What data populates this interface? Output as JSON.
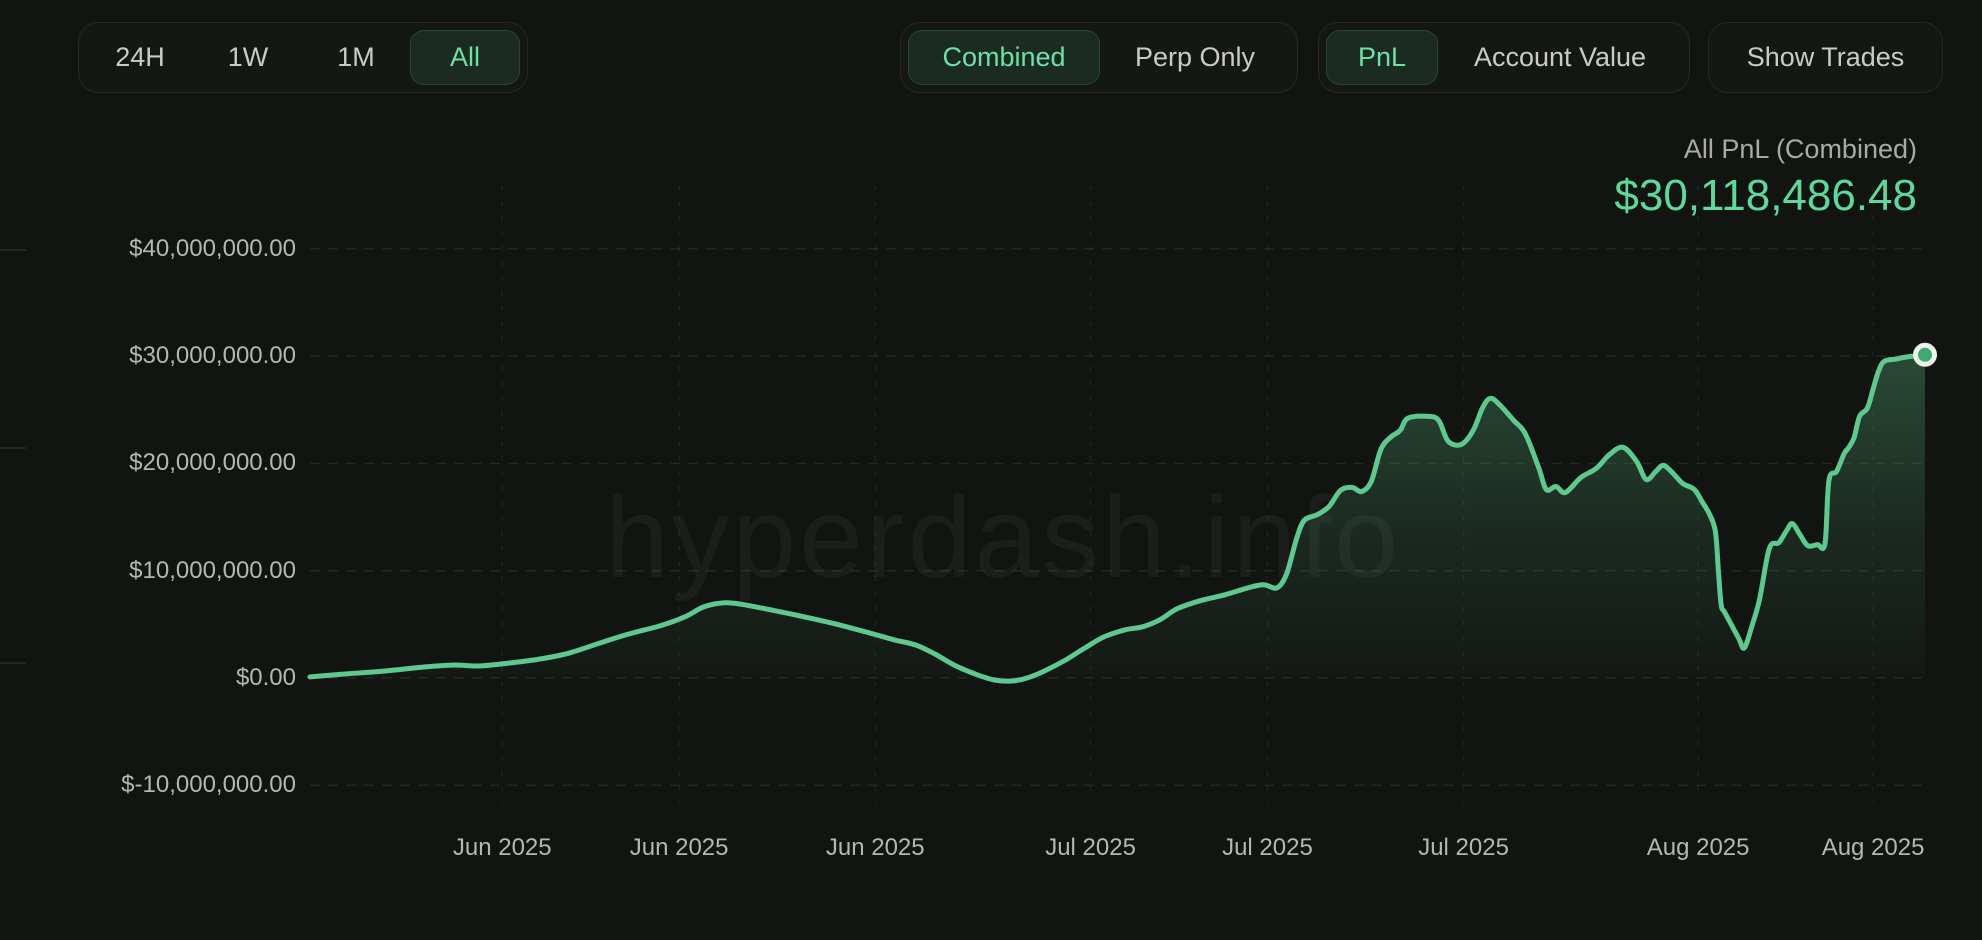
{
  "toolbar": {
    "time_ranges": [
      {
        "label": "24H",
        "selected": false
      },
      {
        "label": "1W",
        "selected": false
      },
      {
        "label": "1M",
        "selected": false
      },
      {
        "label": "All",
        "selected": true
      }
    ],
    "mode_toggle": [
      {
        "label": "Combined",
        "selected": true
      },
      {
        "label": "Perp Only",
        "selected": false
      }
    ],
    "metric_toggle": [
      {
        "label": "PnL",
        "selected": true
      },
      {
        "label": "Account Value",
        "selected": false
      }
    ],
    "show_trades_label": "Show Trades"
  },
  "header": {
    "title": "All PnL (Combined)",
    "value": "$30,118,486.48"
  },
  "watermark": "hyperdash.info",
  "colors": {
    "background": "#121411",
    "line_green": "#5ec88f",
    "value_green": "#5ed89b",
    "selected_text_green": "#6ee0a4",
    "selected_pill_bg": "#1c2b22",
    "axis_text": "#b5b7b5",
    "muted_text": "#c9cbc9",
    "endpoint_dot_fill": "#3fa873",
    "endpoint_dot_ring": "#edf2ed"
  },
  "chart_data": {
    "type": "area",
    "title": "All PnL (Combined)",
    "final_value_usd": 30118486.48,
    "value_unit": "USD millions",
    "x_unit": "day index across visible range (~late May 2025 to mid Aug 2025), 84 days total",
    "grid": {
      "horizontal": "dashed",
      "vertical": "dashed at month ticks"
    },
    "ylim_usd": [
      -10000000,
      45000000
    ],
    "y_axis": {
      "ticks": [
        {
          "value": 40000000,
          "label": "$40,000,000.00"
        },
        {
          "value": 30000000,
          "label": "$30,000,000.00"
        },
        {
          "value": 20000000,
          "label": "$20,000,000.00"
        },
        {
          "value": 10000000,
          "label": "$10,000,000.00"
        },
        {
          "value": 0,
          "label": "$0.00"
        },
        {
          "value": -10000000,
          "label": "$-10,000,000.00"
        }
      ]
    },
    "x_axis": {
      "ticks": [
        {
          "label": "Jun 2025",
          "day": 10.0
        },
        {
          "label": "Jun 2025",
          "day": 19.2
        },
        {
          "label": "Jun 2025",
          "day": 29.4
        },
        {
          "label": "Jul 2025",
          "day": 40.6
        },
        {
          "label": "Jul 2025",
          "day": 49.8
        },
        {
          "label": "Jul 2025",
          "day": 60.0
        },
        {
          "label": "Aug 2025",
          "day": 72.2
        },
        {
          "label": "Aug 2025",
          "day": 81.3
        }
      ]
    },
    "endpoint_marker": true,
    "series": [
      {
        "name": "All PnL (Combined)",
        "points": [
          [
            0,
            0.1
          ],
          [
            1.8,
            0.37
          ],
          [
            3.9,
            0.65
          ],
          [
            6,
            1.03
          ],
          [
            7.5,
            1.21
          ],
          [
            8.8,
            1.12
          ],
          [
            10.4,
            1.4
          ],
          [
            12,
            1.78
          ],
          [
            13.5,
            2.34
          ],
          [
            15.1,
            3.27
          ],
          [
            16.6,
            4.11
          ],
          [
            18.2,
            4.86
          ],
          [
            19.5,
            5.7
          ],
          [
            20.5,
            6.64
          ],
          [
            21.6,
            7.01
          ],
          [
            22.6,
            6.82
          ],
          [
            24.2,
            6.26
          ],
          [
            25.7,
            5.7
          ],
          [
            27.3,
            5.05
          ],
          [
            28.9,
            4.3
          ],
          [
            30.4,
            3.55
          ],
          [
            31.5,
            3.08
          ],
          [
            32.5,
            2.24
          ],
          [
            33.5,
            1.21
          ],
          [
            34.6,
            0.37
          ],
          [
            35.6,
            -0.19
          ],
          [
            36.5,
            -0.28
          ],
          [
            37.3,
            0
          ],
          [
            38.2,
            0.65
          ],
          [
            39.3,
            1.68
          ],
          [
            40.3,
            2.8
          ],
          [
            41.3,
            3.83
          ],
          [
            42.4,
            4.49
          ],
          [
            43.3,
            4.77
          ],
          [
            44.2,
            5.42
          ],
          [
            45.1,
            6.45
          ],
          [
            46.3,
            7.2
          ],
          [
            47.6,
            7.76
          ],
          [
            48.8,
            8.41
          ],
          [
            49.6,
            8.69
          ],
          [
            50.3,
            8.41
          ],
          [
            50.8,
            9.72
          ],
          [
            51.3,
            12.9
          ],
          [
            51.7,
            14.67
          ],
          [
            52.4,
            15.23
          ],
          [
            53,
            15.98
          ],
          [
            53.6,
            17.48
          ],
          [
            54.2,
            17.76
          ],
          [
            54.7,
            17.38
          ],
          [
            55.2,
            18.32
          ],
          [
            55.7,
            21.31
          ],
          [
            56.2,
            22.43
          ],
          [
            56.7,
            23.08
          ],
          [
            57.1,
            24.21
          ],
          [
            58.1,
            24.39
          ],
          [
            58.7,
            24.02
          ],
          [
            59.2,
            22.06
          ],
          [
            59.9,
            21.78
          ],
          [
            60.5,
            23.08
          ],
          [
            61,
            25.23
          ],
          [
            61.4,
            26.07
          ],
          [
            61.9,
            25.42
          ],
          [
            62.6,
            24.02
          ],
          [
            63.2,
            22.8
          ],
          [
            63.9,
            19.63
          ],
          [
            64.3,
            17.57
          ],
          [
            64.8,
            17.85
          ],
          [
            65.3,
            17.29
          ],
          [
            66.1,
            18.69
          ],
          [
            66.9,
            19.53
          ],
          [
            67.6,
            20.84
          ],
          [
            68.3,
            21.5
          ],
          [
            69,
            20.19
          ],
          [
            69.5,
            18.5
          ],
          [
            70,
            19.25
          ],
          [
            70.4,
            19.81
          ],
          [
            70.9,
            19.07
          ],
          [
            71.4,
            18.13
          ],
          [
            72,
            17.57
          ],
          [
            72.4,
            16.45
          ],
          [
            72.8,
            15.23
          ],
          [
            73.1,
            13.64
          ],
          [
            73.25,
            10.1
          ],
          [
            73.4,
            6.82
          ],
          [
            73.6,
            6.07
          ],
          [
            74.3,
            3.74
          ],
          [
            74.6,
            2.8
          ],
          [
            75,
            4.86
          ],
          [
            75.4,
            7.38
          ],
          [
            75.9,
            12.06
          ],
          [
            76.4,
            12.62
          ],
          [
            76.8,
            13.74
          ],
          [
            77.1,
            14.39
          ],
          [
            77.5,
            13.36
          ],
          [
            77.9,
            12.34
          ],
          [
            78.4,
            12.43
          ],
          [
            78.8,
            12.52
          ],
          [
            79,
            18.41
          ],
          [
            79.4,
            19.25
          ],
          [
            79.8,
            20.93
          ],
          [
            80,
            21.4
          ],
          [
            80.3,
            22.34
          ],
          [
            80.6,
            24.39
          ],
          [
            81,
            25.14
          ],
          [
            81.3,
            26.92
          ],
          [
            81.6,
            28.69
          ],
          [
            81.9,
            29.53
          ],
          [
            82.5,
            29.72
          ],
          [
            83,
            29.91
          ],
          [
            84,
            30.12
          ]
        ]
      }
    ]
  }
}
